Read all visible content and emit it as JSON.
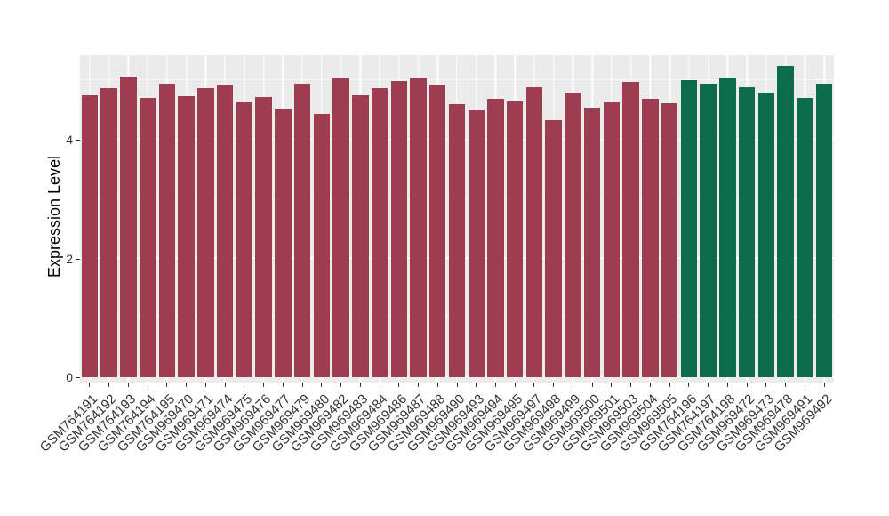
{
  "chart_data": {
    "type": "bar",
    "title": "",
    "xlabel": "",
    "ylabel": "Expression Level",
    "ylim": [
      0,
      5.42
    ],
    "yticks": [
      0,
      2,
      4
    ],
    "grid": "on",
    "legend": "none",
    "panel_background": "#EBEBEB",
    "gridline_color": "#FFFFFF",
    "colors": {
      "red": "#9E3D4F",
      "green": "#0B6B4A"
    },
    "categories": [
      "GSM764191",
      "GSM764192",
      "GSM764193",
      "GSM764194",
      "GSM764195",
      "GSM969470",
      "GSM969471",
      "GSM969474",
      "GSM969475",
      "GSM969476",
      "GSM969477",
      "GSM969479",
      "GSM969480",
      "GSM969482",
      "GSM969483",
      "GSM969484",
      "GSM969486",
      "GSM969487",
      "GSM969488",
      "GSM969490",
      "GSM969493",
      "GSM969494",
      "GSM969495",
      "GSM969497",
      "GSM969498",
      "GSM969499",
      "GSM969500",
      "GSM969501",
      "GSM969503",
      "GSM969504",
      "GSM969505",
      "GSM764196",
      "GSM764197",
      "GSM764198",
      "GSM969472",
      "GSM969473",
      "GSM969478",
      "GSM969491",
      "GSM969492"
    ],
    "values": [
      4.75,
      4.87,
      5.06,
      4.7,
      4.94,
      4.73,
      4.87,
      4.92,
      4.63,
      4.72,
      4.51,
      4.95,
      4.43,
      5.03,
      4.75,
      4.87,
      4.99,
      5.03,
      4.92,
      4.6,
      4.49,
      4.69,
      4.64,
      4.88,
      4.33,
      4.79,
      4.54,
      4.63,
      4.97,
      4.69,
      4.61,
      5.01,
      4.95,
      5.04,
      4.88,
      4.8,
      5.24,
      4.7,
      4.94
    ],
    "groups": [
      "red",
      "red",
      "red",
      "red",
      "red",
      "red",
      "red",
      "red",
      "red",
      "red",
      "red",
      "red",
      "red",
      "red",
      "red",
      "red",
      "red",
      "red",
      "red",
      "red",
      "red",
      "red",
      "red",
      "red",
      "red",
      "red",
      "red",
      "red",
      "red",
      "red",
      "red",
      "green",
      "green",
      "green",
      "green",
      "green",
      "green",
      "green",
      "green"
    ]
  }
}
